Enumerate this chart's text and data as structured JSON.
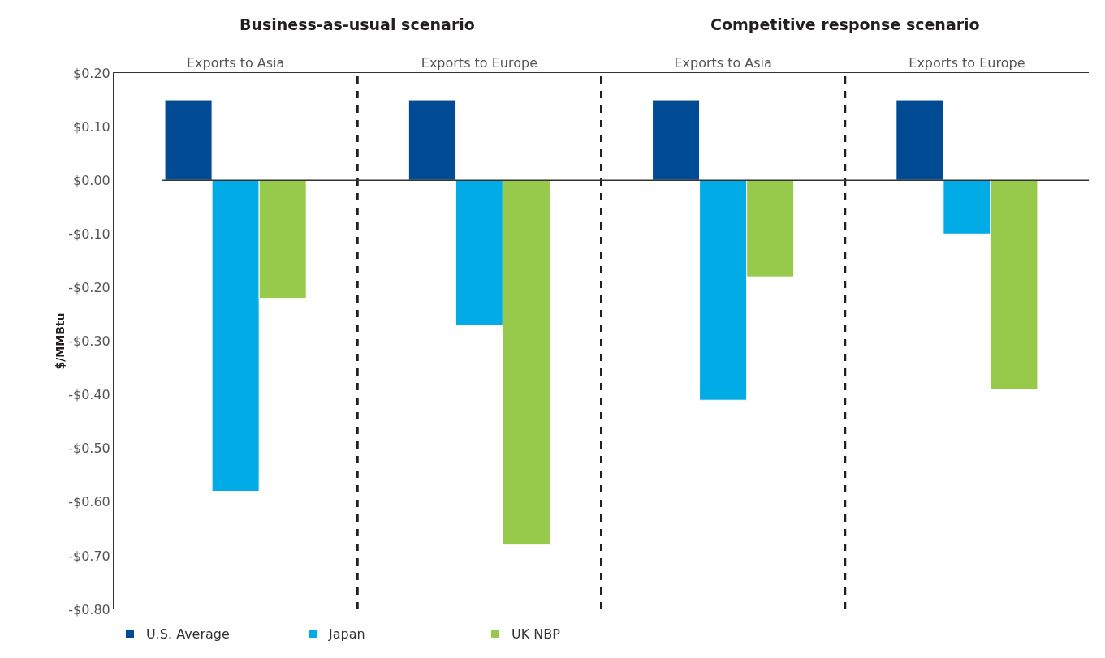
{
  "chart_data": {
    "type": "bar",
    "categories": [
      "Exports to Asia",
      "Exports to Europe",
      "Exports to Asia",
      "Exports to Europe"
    ],
    "series": [
      {
        "name": "U.S. Average",
        "color": "#004b93",
        "values": [
          0.15,
          0.15,
          0.15,
          0.15
        ]
      },
      {
        "name": "Japan",
        "color": "#00abe6",
        "values": [
          -0.58,
          -0.27,
          -0.41,
          -0.1
        ]
      },
      {
        "name": "UK NBP",
        "color": "#97c94a",
        "values": [
          -0.22,
          -0.68,
          -0.18,
          -0.39
        ]
      }
    ],
    "ylabel": "$/MMBtu",
    "ylim": [
      -0.8,
      0.2
    ],
    "yticks": [
      {
        "value": 0.2,
        "label": "$0.20"
      },
      {
        "value": 0.1,
        "label": "$0.10"
      },
      {
        "value": 0,
        "label": "$0.00"
      },
      {
        "value": -0.1,
        "label": "-$0.10"
      },
      {
        "value": -0.2,
        "label": "-$0.20"
      },
      {
        "value": -0.3,
        "label": "-$0.30"
      },
      {
        "value": -0.4,
        "label": "-$0.40"
      },
      {
        "value": -0.5,
        "label": "-$0.50"
      },
      {
        "value": -0.6,
        "label": "-$0.60"
      },
      {
        "value": -0.7,
        "label": "-$0.70"
      },
      {
        "value": -0.8,
        "label": "-$0.80"
      }
    ],
    "annotations": [
      "Business-as-usual scenario",
      "Competitive response scenario"
    ],
    "grid": false,
    "legend": "bottom left"
  }
}
